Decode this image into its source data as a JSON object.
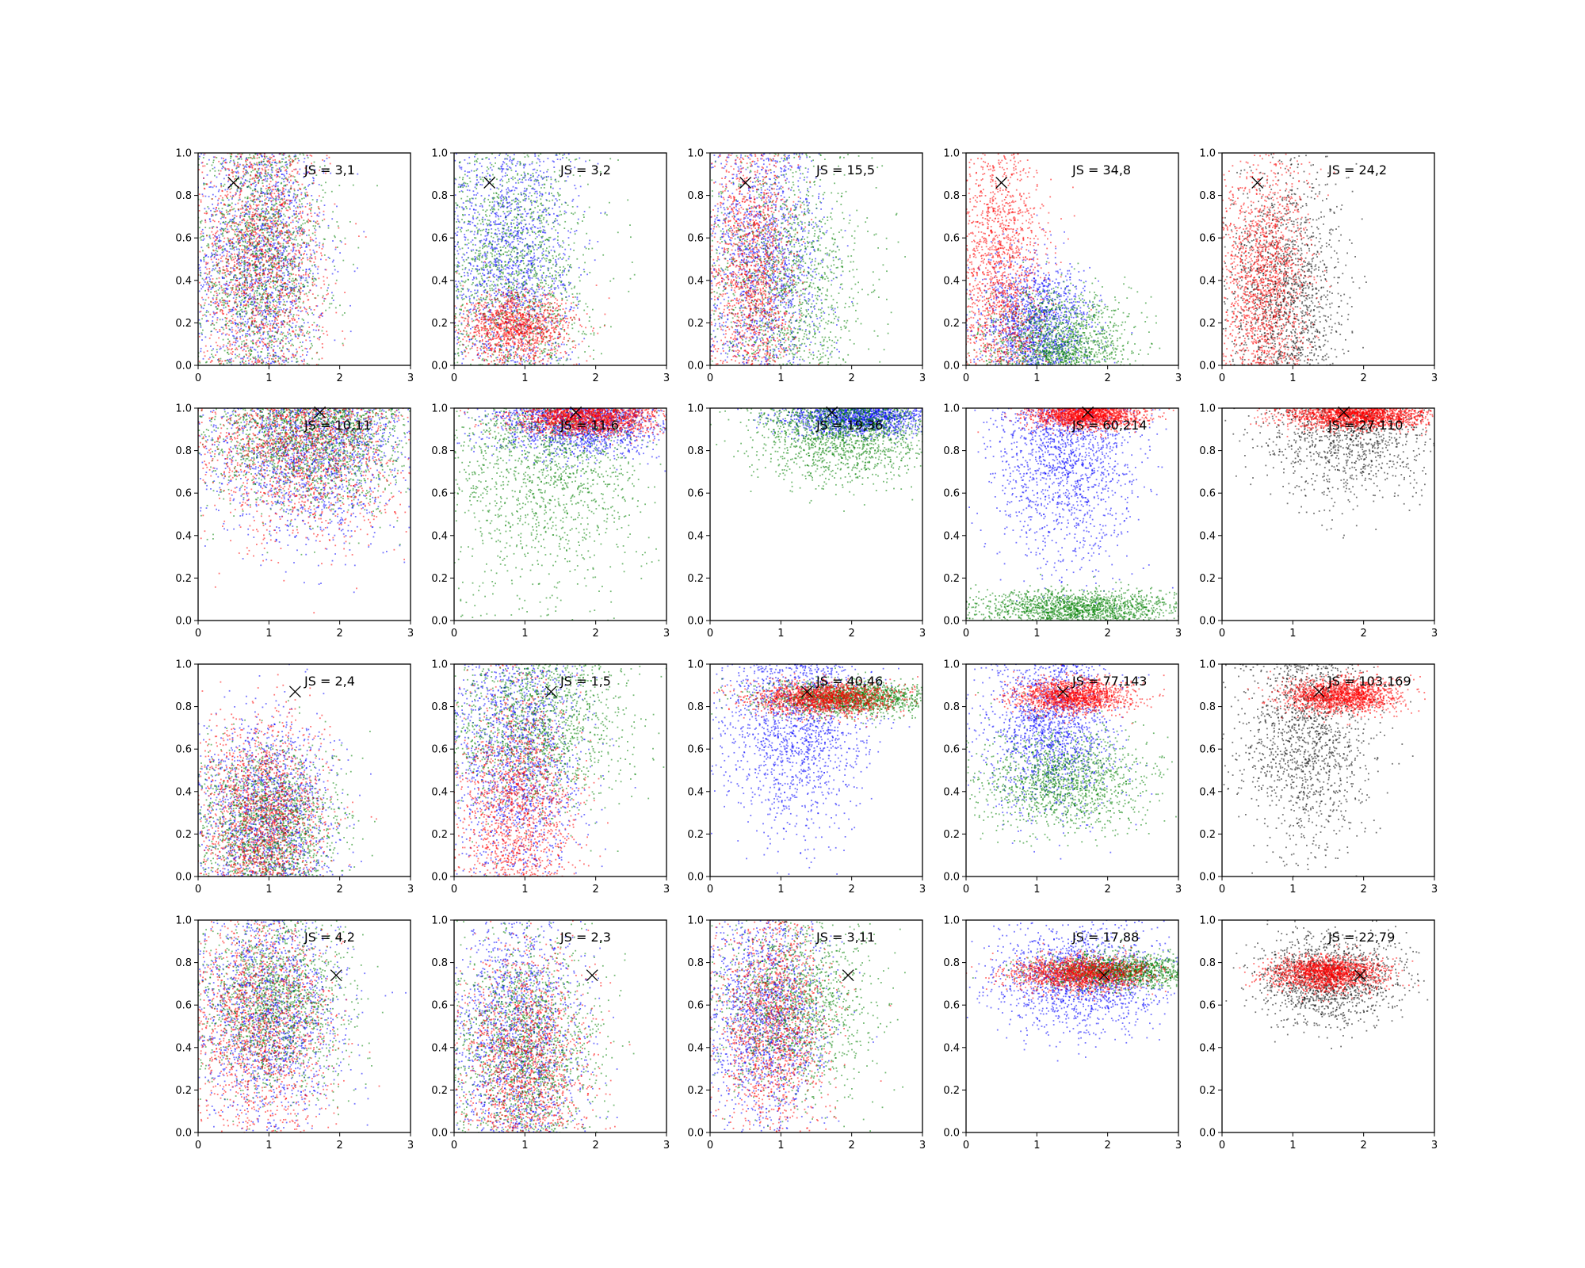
{
  "figure": {
    "rows": 4,
    "cols": 5,
    "point_colors": [
      "#0000ff",
      "#008000",
      "#ff0000",
      "#000000"
    ]
  },
  "chart_data": [
    {
      "type": "scatter",
      "annotation": "JS = 3,1",
      "marker": {
        "x": 0.5,
        "y": 0.86
      },
      "xlim": [
        0,
        3
      ],
      "ylim": [
        0,
        1
      ],
      "xticks": [
        "0",
        "1",
        "2",
        "3"
      ],
      "yticks": [
        "0.0",
        "0.2",
        "0.4",
        "0.6",
        "0.8",
        "1.0"
      ],
      "grid": false,
      "clusters": [
        {
          "color": "#0000ff",
          "n": 1500,
          "cx": 0.9,
          "cy": 0.5,
          "sx": 0.45,
          "sy": 0.3
        },
        {
          "color": "#008000",
          "n": 1500,
          "cx": 0.9,
          "cy": 0.5,
          "sx": 0.45,
          "sy": 0.3
        },
        {
          "color": "#ff0000",
          "n": 1500,
          "cx": 0.9,
          "cy": 0.5,
          "sx": 0.45,
          "sy": 0.3
        }
      ]
    },
    {
      "type": "scatter",
      "annotation": "JS = 3,2",
      "marker": {
        "x": 0.5,
        "y": 0.86
      },
      "xlim": [
        0,
        3
      ],
      "ylim": [
        0,
        1
      ],
      "xticks": [
        "0",
        "1",
        "2",
        "3"
      ],
      "yticks": [
        "0.0",
        "0.2",
        "0.4",
        "0.6",
        "0.8",
        "1.0"
      ],
      "grid": false,
      "clusters": [
        {
          "color": "#0000ff",
          "n": 1400,
          "cx": 0.8,
          "cy": 0.5,
          "sx": 0.45,
          "sy": 0.3
        },
        {
          "color": "#008000",
          "n": 1400,
          "cx": 0.9,
          "cy": 0.45,
          "sx": 0.5,
          "sy": 0.3
        },
        {
          "color": "#ff0000",
          "n": 1200,
          "cx": 0.9,
          "cy": 0.18,
          "sx": 0.4,
          "sy": 0.08
        }
      ]
    },
    {
      "type": "scatter",
      "annotation": "JS = 15,5",
      "marker": {
        "x": 0.5,
        "y": 0.86
      },
      "xlim": [
        0,
        3
      ],
      "ylim": [
        0,
        1
      ],
      "xticks": [
        "0",
        "1",
        "2",
        "3"
      ],
      "yticks": [
        "0.0",
        "0.2",
        "0.4",
        "0.6",
        "0.8",
        "1.0"
      ],
      "grid": false,
      "clusters": [
        {
          "color": "#0000ff",
          "n": 1400,
          "cx": 0.8,
          "cy": 0.5,
          "sx": 0.4,
          "sy": 0.3
        },
        {
          "color": "#008000",
          "n": 1300,
          "cx": 1.1,
          "cy": 0.4,
          "sx": 0.55,
          "sy": 0.28
        },
        {
          "color": "#ff0000",
          "n": 1300,
          "cx": 0.6,
          "cy": 0.45,
          "sx": 0.3,
          "sy": 0.3
        }
      ]
    },
    {
      "type": "scatter",
      "annotation": "JS = 34,8",
      "marker": {
        "x": 0.5,
        "y": 0.86
      },
      "xlim": [
        0,
        3
      ],
      "ylim": [
        0,
        1
      ],
      "xticks": [
        "0",
        "1",
        "2",
        "3"
      ],
      "yticks": [
        "0.0",
        "0.2",
        "0.4",
        "0.6",
        "0.8",
        "1.0"
      ],
      "grid": false,
      "clusters": [
        {
          "color": "#0000ff",
          "n": 1400,
          "cx": 1.0,
          "cy": 0.2,
          "sx": 0.4,
          "sy": 0.15
        },
        {
          "color": "#008000",
          "n": 1300,
          "cx": 1.3,
          "cy": 0.12,
          "sx": 0.5,
          "sy": 0.12
        },
        {
          "color": "#ff0000",
          "n": 1400,
          "cx": 0.5,
          "cy": 0.45,
          "sx": 0.3,
          "sy": 0.3
        }
      ]
    },
    {
      "type": "scatter",
      "annotation": "JS = 24,2",
      "marker": {
        "x": 0.5,
        "y": 0.86
      },
      "xlim": [
        0,
        3
      ],
      "ylim": [
        0,
        1
      ],
      "xticks": [
        "0",
        "1",
        "2",
        "3"
      ],
      "yticks": [
        "0.0",
        "0.2",
        "0.4",
        "0.6",
        "0.8",
        "1.0"
      ],
      "grid": false,
      "clusters": [
        {
          "color": "#000000",
          "n": 1400,
          "cx": 0.9,
          "cy": 0.35,
          "sx": 0.4,
          "sy": 0.28
        },
        {
          "color": "#ff0000",
          "n": 1500,
          "cx": 0.6,
          "cy": 0.4,
          "sx": 0.3,
          "sy": 0.28
        }
      ]
    },
    {
      "type": "scatter",
      "annotation": "JS = 10,11",
      "marker": {
        "x": 1.72,
        "y": 0.98
      },
      "xlim": [
        0,
        3
      ],
      "ylim": [
        0,
        1
      ],
      "xticks": [
        "0",
        "1",
        "2",
        "3"
      ],
      "yticks": [
        "0.0",
        "0.2",
        "0.4",
        "0.6",
        "0.8",
        "1.0"
      ],
      "grid": false,
      "clusters": [
        {
          "color": "#0000ff",
          "n": 1600,
          "cx": 1.6,
          "cy": 0.82,
          "sx": 0.7,
          "sy": 0.22
        },
        {
          "color": "#008000",
          "n": 1600,
          "cx": 1.6,
          "cy": 0.86,
          "sx": 0.7,
          "sy": 0.18
        },
        {
          "color": "#ff0000",
          "n": 1400,
          "cx": 1.5,
          "cy": 0.8,
          "sx": 0.7,
          "sy": 0.22
        }
      ]
    },
    {
      "type": "scatter",
      "annotation": "JS = 11,6",
      "marker": {
        "x": 1.72,
        "y": 0.98
      },
      "xlim": [
        0,
        3
      ],
      "ylim": [
        0,
        1
      ],
      "xticks": [
        "0",
        "1",
        "2",
        "3"
      ],
      "yticks": [
        "0.0",
        "0.2",
        "0.4",
        "0.6",
        "0.8",
        "1.0"
      ],
      "grid": false,
      "clusters": [
        {
          "color": "#0000ff",
          "n": 1500,
          "cx": 1.8,
          "cy": 0.92,
          "sx": 0.6,
          "sy": 0.08
        },
        {
          "color": "#008000",
          "n": 1400,
          "cx": 1.3,
          "cy": 0.7,
          "sx": 0.7,
          "sy": 0.28
        },
        {
          "color": "#ff0000",
          "n": 1500,
          "cx": 1.9,
          "cy": 0.95,
          "sx": 0.5,
          "sy": 0.04
        }
      ]
    },
    {
      "type": "scatter",
      "annotation": "JS = 19,36",
      "marker": {
        "x": 1.72,
        "y": 0.98
      },
      "xlim": [
        0,
        3
      ],
      "ylim": [
        0,
        1
      ],
      "xticks": [
        "0",
        "1",
        "2",
        "3"
      ],
      "yticks": [
        "0.0",
        "0.2",
        "0.4",
        "0.6",
        "0.8",
        "1.0"
      ],
      "grid": false,
      "clusters": [
        {
          "color": "#0000ff",
          "n": 1400,
          "cx": 2.1,
          "cy": 0.95,
          "sx": 0.5,
          "sy": 0.04
        },
        {
          "color": "#008000",
          "n": 1600,
          "cx": 1.9,
          "cy": 0.9,
          "sx": 0.6,
          "sy": 0.12
        }
      ]
    },
    {
      "type": "scatter",
      "annotation": "JS = 60,214",
      "marker": {
        "x": 1.72,
        "y": 0.98
      },
      "xlim": [
        0,
        3
      ],
      "ylim": [
        0,
        1
      ],
      "xticks": [
        "0",
        "1",
        "2",
        "3"
      ],
      "yticks": [
        "0.0",
        "0.2",
        "0.4",
        "0.6",
        "0.8",
        "1.0"
      ],
      "grid": false,
      "clusters": [
        {
          "color": "#0000ff",
          "n": 1500,
          "cx": 1.4,
          "cy": 0.75,
          "sx": 0.5,
          "sy": 0.25
        },
        {
          "color": "#008000",
          "n": 1500,
          "cx": 1.6,
          "cy": 0.06,
          "sx": 0.7,
          "sy": 0.04
        },
        {
          "color": "#ff0000",
          "n": 1500,
          "cx": 1.7,
          "cy": 0.96,
          "sx": 0.4,
          "sy": 0.03
        }
      ]
    },
    {
      "type": "scatter",
      "annotation": "JS = 27,110",
      "marker": {
        "x": 1.72,
        "y": 0.98
      },
      "xlim": [
        0,
        3
      ],
      "ylim": [
        0,
        1
      ],
      "xticks": [
        "0",
        "1",
        "2",
        "3"
      ],
      "yticks": [
        "0.0",
        "0.2",
        "0.4",
        "0.6",
        "0.8",
        "1.0"
      ],
      "grid": false,
      "clusters": [
        {
          "color": "#000000",
          "n": 1000,
          "cx": 1.8,
          "cy": 0.85,
          "sx": 0.6,
          "sy": 0.15
        },
        {
          "color": "#ff0000",
          "n": 1600,
          "cx": 1.9,
          "cy": 0.96,
          "sx": 0.5,
          "sy": 0.03
        }
      ]
    },
    {
      "type": "scatter",
      "annotation": "JS = 2,4",
      "marker": {
        "x": 1.37,
        "y": 0.87
      },
      "xlim": [
        0,
        3
      ],
      "ylim": [
        0,
        1
      ],
      "xticks": [
        "0",
        "1",
        "2",
        "3"
      ],
      "yticks": [
        "0.0",
        "0.2",
        "0.4",
        "0.6",
        "0.8",
        "1.0"
      ],
      "grid": false,
      "clusters": [
        {
          "color": "#0000ff",
          "n": 1500,
          "cx": 1.0,
          "cy": 0.3,
          "sx": 0.45,
          "sy": 0.22
        },
        {
          "color": "#008000",
          "n": 1500,
          "cx": 1.0,
          "cy": 0.25,
          "sx": 0.5,
          "sy": 0.18
        },
        {
          "color": "#ff0000",
          "n": 1500,
          "cx": 0.9,
          "cy": 0.3,
          "sx": 0.45,
          "sy": 0.22
        }
      ]
    },
    {
      "type": "scatter",
      "annotation": "JS = 1,5",
      "marker": {
        "x": 1.37,
        "y": 0.87
      },
      "xlim": [
        0,
        3
      ],
      "ylim": [
        0,
        1
      ],
      "xticks": [
        "0",
        "1",
        "2",
        "3"
      ],
      "yticks": [
        "0.0",
        "0.2",
        "0.4",
        "0.6",
        "0.8",
        "1.0"
      ],
      "grid": false,
      "clusters": [
        {
          "color": "#0000ff",
          "n": 1500,
          "cx": 0.9,
          "cy": 0.55,
          "sx": 0.45,
          "sy": 0.28
        },
        {
          "color": "#008000",
          "n": 1400,
          "cx": 1.2,
          "cy": 0.7,
          "sx": 0.6,
          "sy": 0.2
        },
        {
          "color": "#ff0000",
          "n": 1400,
          "cx": 0.9,
          "cy": 0.35,
          "sx": 0.4,
          "sy": 0.25
        }
      ]
    },
    {
      "type": "scatter",
      "annotation": "JS = 40,46",
      "marker": {
        "x": 1.37,
        "y": 0.87
      },
      "xlim": [
        0,
        3
      ],
      "ylim": [
        0,
        1
      ],
      "xticks": [
        "0",
        "1",
        "2",
        "3"
      ],
      "yticks": [
        "0.0",
        "0.2",
        "0.4",
        "0.6",
        "0.8",
        "1.0"
      ],
      "grid": false,
      "clusters": [
        {
          "color": "#0000ff",
          "n": 1500,
          "cx": 1.2,
          "cy": 0.7,
          "sx": 0.5,
          "sy": 0.25
        },
        {
          "color": "#008000",
          "n": 1500,
          "cx": 2.0,
          "cy": 0.84,
          "sx": 0.6,
          "sy": 0.04
        },
        {
          "color": "#ff0000",
          "n": 1500,
          "cx": 1.6,
          "cy": 0.84,
          "sx": 0.5,
          "sy": 0.04
        }
      ]
    },
    {
      "type": "scatter",
      "annotation": "JS = 77,143",
      "marker": {
        "x": 1.37,
        "y": 0.87
      },
      "xlim": [
        0,
        3
      ],
      "ylim": [
        0,
        1
      ],
      "xticks": [
        "0",
        "1",
        "2",
        "3"
      ],
      "yticks": [
        "0.0",
        "0.2",
        "0.4",
        "0.6",
        "0.8",
        "1.0"
      ],
      "grid": false,
      "clusters": [
        {
          "color": "#0000ff",
          "n": 1500,
          "cx": 1.2,
          "cy": 0.7,
          "sx": 0.45,
          "sy": 0.2
        },
        {
          "color": "#008000",
          "n": 1400,
          "cx": 1.4,
          "cy": 0.45,
          "sx": 0.6,
          "sy": 0.12
        },
        {
          "color": "#ff0000",
          "n": 1500,
          "cx": 1.5,
          "cy": 0.85,
          "sx": 0.4,
          "sy": 0.04
        }
      ]
    },
    {
      "type": "scatter",
      "annotation": "JS = 103,169",
      "marker": {
        "x": 1.37,
        "y": 0.87
      },
      "xlim": [
        0,
        3
      ],
      "ylim": [
        0,
        1
      ],
      "xticks": [
        "0",
        "1",
        "2",
        "3"
      ],
      "yticks": [
        "0.0",
        "0.2",
        "0.4",
        "0.6",
        "0.8",
        "1.0"
      ],
      "grid": false,
      "clusters": [
        {
          "color": "#000000",
          "n": 1400,
          "cx": 1.2,
          "cy": 0.65,
          "sx": 0.45,
          "sy": 0.25
        },
        {
          "color": "#ff0000",
          "n": 1600,
          "cx": 1.7,
          "cy": 0.85,
          "sx": 0.4,
          "sy": 0.04
        }
      ]
    },
    {
      "type": "scatter",
      "annotation": "JS = 4,2",
      "marker": {
        "x": 1.95,
        "y": 0.74
      },
      "xlim": [
        0,
        3
      ],
      "ylim": [
        0,
        1
      ],
      "xticks": [
        "0",
        "1",
        "2",
        "3"
      ],
      "yticks": [
        "0.0",
        "0.2",
        "0.4",
        "0.6",
        "0.8",
        "1.0"
      ],
      "grid": false,
      "clusters": [
        {
          "color": "#0000ff",
          "n": 1500,
          "cx": 1.0,
          "cy": 0.55,
          "sx": 0.5,
          "sy": 0.25
        },
        {
          "color": "#008000",
          "n": 1500,
          "cx": 1.1,
          "cy": 0.6,
          "sx": 0.5,
          "sy": 0.2
        },
        {
          "color": "#ff0000",
          "n": 1400,
          "cx": 0.9,
          "cy": 0.5,
          "sx": 0.5,
          "sy": 0.25
        }
      ]
    },
    {
      "type": "scatter",
      "annotation": "JS = 2,3",
      "marker": {
        "x": 1.95,
        "y": 0.74
      },
      "xlim": [
        0,
        3
      ],
      "ylim": [
        0,
        1
      ],
      "xticks": [
        "0",
        "1",
        "2",
        "3"
      ],
      "yticks": [
        "0.0",
        "0.2",
        "0.4",
        "0.6",
        "0.8",
        "1.0"
      ],
      "grid": false,
      "clusters": [
        {
          "color": "#0000ff",
          "n": 1500,
          "cx": 0.9,
          "cy": 0.45,
          "sx": 0.45,
          "sy": 0.28
        },
        {
          "color": "#008000",
          "n": 1500,
          "cx": 1.0,
          "cy": 0.4,
          "sx": 0.5,
          "sy": 0.25
        },
        {
          "color": "#ff0000",
          "n": 1400,
          "cx": 1.0,
          "cy": 0.35,
          "sx": 0.45,
          "sy": 0.25
        }
      ]
    },
    {
      "type": "scatter",
      "annotation": "JS = 3,11",
      "marker": {
        "x": 1.95,
        "y": 0.74
      },
      "xlim": [
        0,
        3
      ],
      "ylim": [
        0,
        1
      ],
      "xticks": [
        "0",
        "1",
        "2",
        "3"
      ],
      "yticks": [
        "0.0",
        "0.2",
        "0.4",
        "0.6",
        "0.8",
        "1.0"
      ],
      "grid": false,
      "clusters": [
        {
          "color": "#0000ff",
          "n": 1500,
          "cx": 0.8,
          "cy": 0.55,
          "sx": 0.4,
          "sy": 0.25
        },
        {
          "color": "#008000",
          "n": 1400,
          "cx": 1.2,
          "cy": 0.6,
          "sx": 0.55,
          "sy": 0.2
        },
        {
          "color": "#ff0000",
          "n": 1400,
          "cx": 0.9,
          "cy": 0.5,
          "sx": 0.4,
          "sy": 0.25
        }
      ]
    },
    {
      "type": "scatter",
      "annotation": "JS = 17,88",
      "marker": {
        "x": 1.95,
        "y": 0.74
      },
      "xlim": [
        0,
        3
      ],
      "ylim": [
        0,
        1
      ],
      "xticks": [
        "0",
        "1",
        "2",
        "3"
      ],
      "yticks": [
        "0.0",
        "0.2",
        "0.4",
        "0.6",
        "0.8",
        "1.0"
      ],
      "grid": false,
      "clusters": [
        {
          "color": "#0000ff",
          "n": 1500,
          "cx": 1.6,
          "cy": 0.72,
          "sx": 0.6,
          "sy": 0.12
        },
        {
          "color": "#008000",
          "n": 1500,
          "cx": 2.2,
          "cy": 0.76,
          "sx": 0.6,
          "sy": 0.04
        },
        {
          "color": "#ff0000",
          "n": 1500,
          "cx": 1.6,
          "cy": 0.75,
          "sx": 0.5,
          "sy": 0.04
        }
      ]
    },
    {
      "type": "scatter",
      "annotation": "JS = 22,79",
      "marker": {
        "x": 1.95,
        "y": 0.74
      },
      "xlim": [
        0,
        3
      ],
      "ylim": [
        0,
        1
      ],
      "xticks": [
        "0",
        "1",
        "2",
        "3"
      ],
      "yticks": [
        "0.0",
        "0.2",
        "0.4",
        "0.6",
        "0.8",
        "1.0"
      ],
      "grid": false,
      "clusters": [
        {
          "color": "#000000",
          "n": 1400,
          "cx": 1.5,
          "cy": 0.72,
          "sx": 0.5,
          "sy": 0.1
        },
        {
          "color": "#ff0000",
          "n": 1600,
          "cx": 1.5,
          "cy": 0.75,
          "sx": 0.4,
          "sy": 0.04
        }
      ]
    }
  ]
}
